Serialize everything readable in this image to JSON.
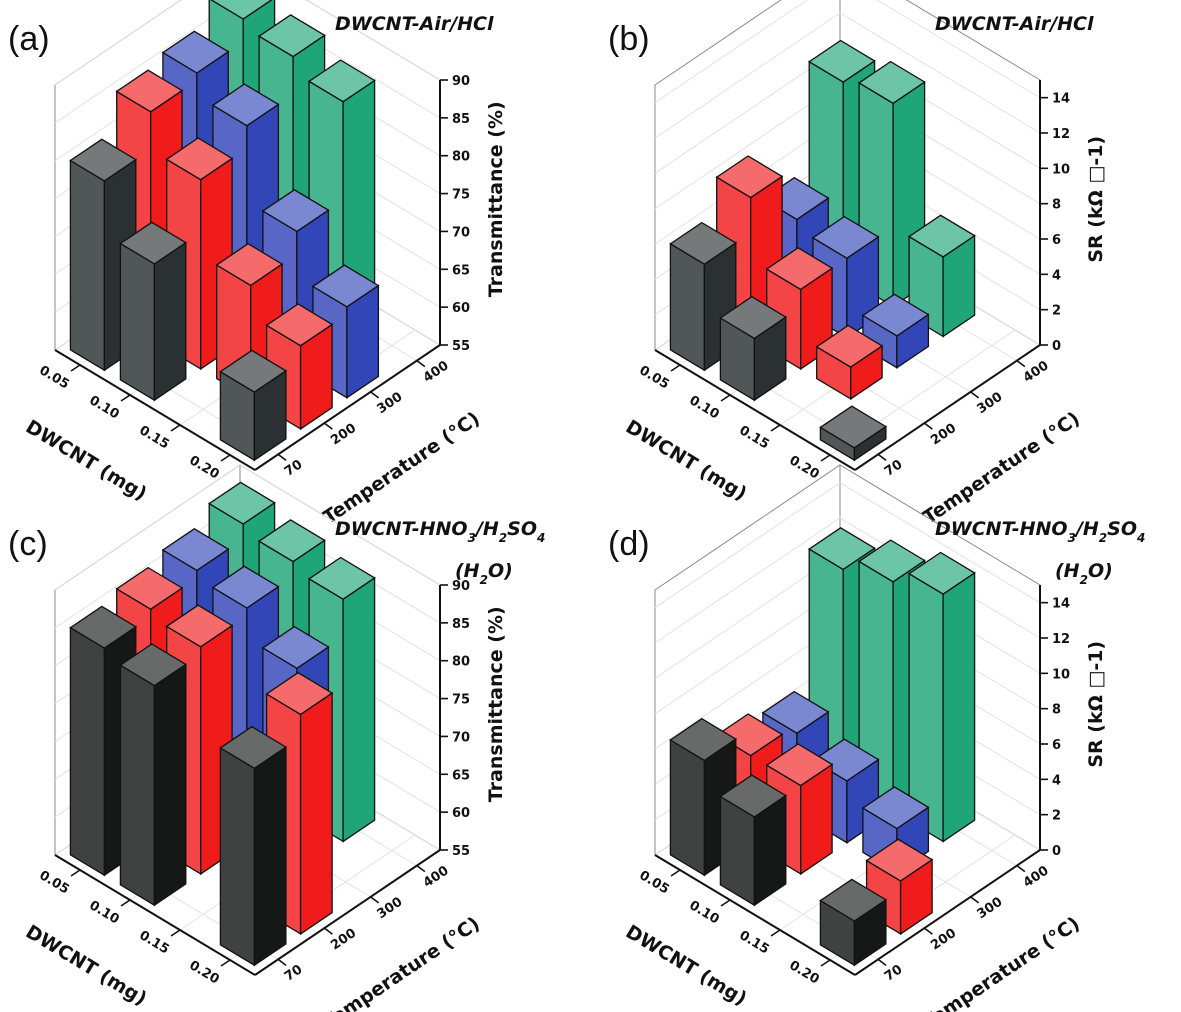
{
  "chart_data": [
    {
      "panel": "(a)",
      "type": "bar",
      "title": "DWCNT-Air/HCl",
      "title_lines": [
        "DWCNT-Air/HCl"
      ],
      "xlabel": "DWCNT (mg)",
      "ylabel": "Temperature (°C)",
      "zlabel": "Transmittance (%)",
      "x_categories": [
        "0.05",
        "0.10",
        "0.15",
        "0.20"
      ],
      "y_categories": [
        "70",
        "200",
        "300",
        "400"
      ],
      "zlim": [
        55,
        90
      ],
      "z_ticks": [
        "55",
        "60",
        "65",
        "70",
        "75",
        "80",
        "85",
        "90"
      ],
      "colors": {
        "70": "#2b3132",
        "200": "#f01c1c",
        "300": "#3346b8",
        "400": "#1fa577"
      },
      "series": [
        {
          "temperature": "70",
          "values": [
            80,
            73,
            null,
            64
          ]
        },
        {
          "temperature": "200",
          "values": [
            85,
            80,
            70,
            66
          ]
        },
        {
          "temperature": "300",
          "values": [
            86,
            83,
            73,
            67
          ]
        },
        {
          "temperature": "400",
          "values": [
            89,
            88,
            86,
            null
          ]
        }
      ]
    },
    {
      "panel": "(b)",
      "type": "bar",
      "title": "DWCNT-Air/HCl",
      "title_lines": [
        "DWCNT-Air/HCl"
      ],
      "xlabel": "DWCNT (mg)",
      "ylabel": "Temperature (°C)",
      "zlabel": "SR (kΩ □-1)",
      "x_categories": [
        "0.05",
        "0.10",
        "0.15",
        "0.20"
      ],
      "y_categories": [
        "70",
        "200",
        "300",
        "400"
      ],
      "zlim": [
        0,
        15
      ],
      "z_ticks": [
        "0",
        "2",
        "4",
        "6",
        "8",
        "10",
        "12",
        "14"
      ],
      "colors": {
        "70": "#2b3132",
        "200": "#f01c1c",
        "300": "#3346b8",
        "400": "#1fa577"
      },
      "series": [
        {
          "temperature": "70",
          "values": [
            6,
            3.5,
            null,
            0.7
          ]
        },
        {
          "temperature": "200",
          "values": [
            8,
            4.5,
            1.8,
            null
          ]
        },
        {
          "temperature": "300",
          "values": [
            5,
            4.5,
            1.8,
            null
          ]
        },
        {
          "temperature": "400",
          "values": [
            11,
            11.5,
            4.5,
            null
          ]
        }
      ]
    },
    {
      "panel": "(c)",
      "type": "bar",
      "title": "DWCNT-HNO3/H2SO4 (H2O)",
      "title_lines": [
        "DWCNT-HNO3/H2SO4",
        "(H2O)"
      ],
      "xlabel": "DWCNT (mg)",
      "ylabel": "Temperature (°C)",
      "zlabel": "Transmittance (%)",
      "x_categories": [
        "0.05",
        "0.10",
        "0.15",
        "0.20"
      ],
      "y_categories": [
        "70",
        "200",
        "300",
        "400"
      ],
      "zlim": [
        55,
        90
      ],
      "z_ticks": [
        "55",
        "60",
        "65",
        "70",
        "75",
        "80",
        "85",
        "90"
      ],
      "colors": {
        "70": "#161818",
        "200": "#f01c1c",
        "300": "#3346b8",
        "400": "#1fa577"
      },
      "series": [
        {
          "temperature": "70",
          "values": [
            85,
            84,
            null,
            81
          ]
        },
        {
          "temperature": "200",
          "values": [
            86,
            85,
            null,
            84
          ]
        },
        {
          "temperature": "300",
          "values": [
            87,
            86,
            82,
            null
          ]
        },
        {
          "temperature": "400",
          "values": [
            89,
            88,
            87,
            null
          ]
        }
      ]
    },
    {
      "panel": "(d)",
      "type": "bar",
      "title": "DWCNT-HNO3/H2SO4 (H2O)",
      "title_lines": [
        "DWCNT-HNO3/H2SO4",
        "(H2O)"
      ],
      "xlabel": "DWCNT (mg)",
      "ylabel": "Temperature (°C)",
      "zlabel": "SR (kΩ □-1)",
      "x_categories": [
        "0.05",
        "0.10",
        "0.15",
        "0.20"
      ],
      "y_categories": [
        "70",
        "200",
        "300",
        "400"
      ],
      "zlim": [
        0,
        15
      ],
      "z_ticks": [
        "0",
        "2",
        "4",
        "6",
        "8",
        "10",
        "12",
        "14"
      ],
      "colors": {
        "70": "#161818",
        "200": "#f01c1c",
        "300": "#3346b8",
        "400": "#1fa577"
      },
      "series": [
        {
          "temperature": "70",
          "values": [
            6.5,
            5,
            null,
            2.5
          ]
        },
        {
          "temperature": "200",
          "values": [
            5,
            5,
            null,
            3
          ]
        },
        {
          "temperature": "300",
          "values": [
            4.5,
            3.5,
            2.5,
            null
          ]
        },
        {
          "temperature": "400",
          "values": [
            12,
            13,
            14,
            null
          ]
        }
      ]
    }
  ]
}
